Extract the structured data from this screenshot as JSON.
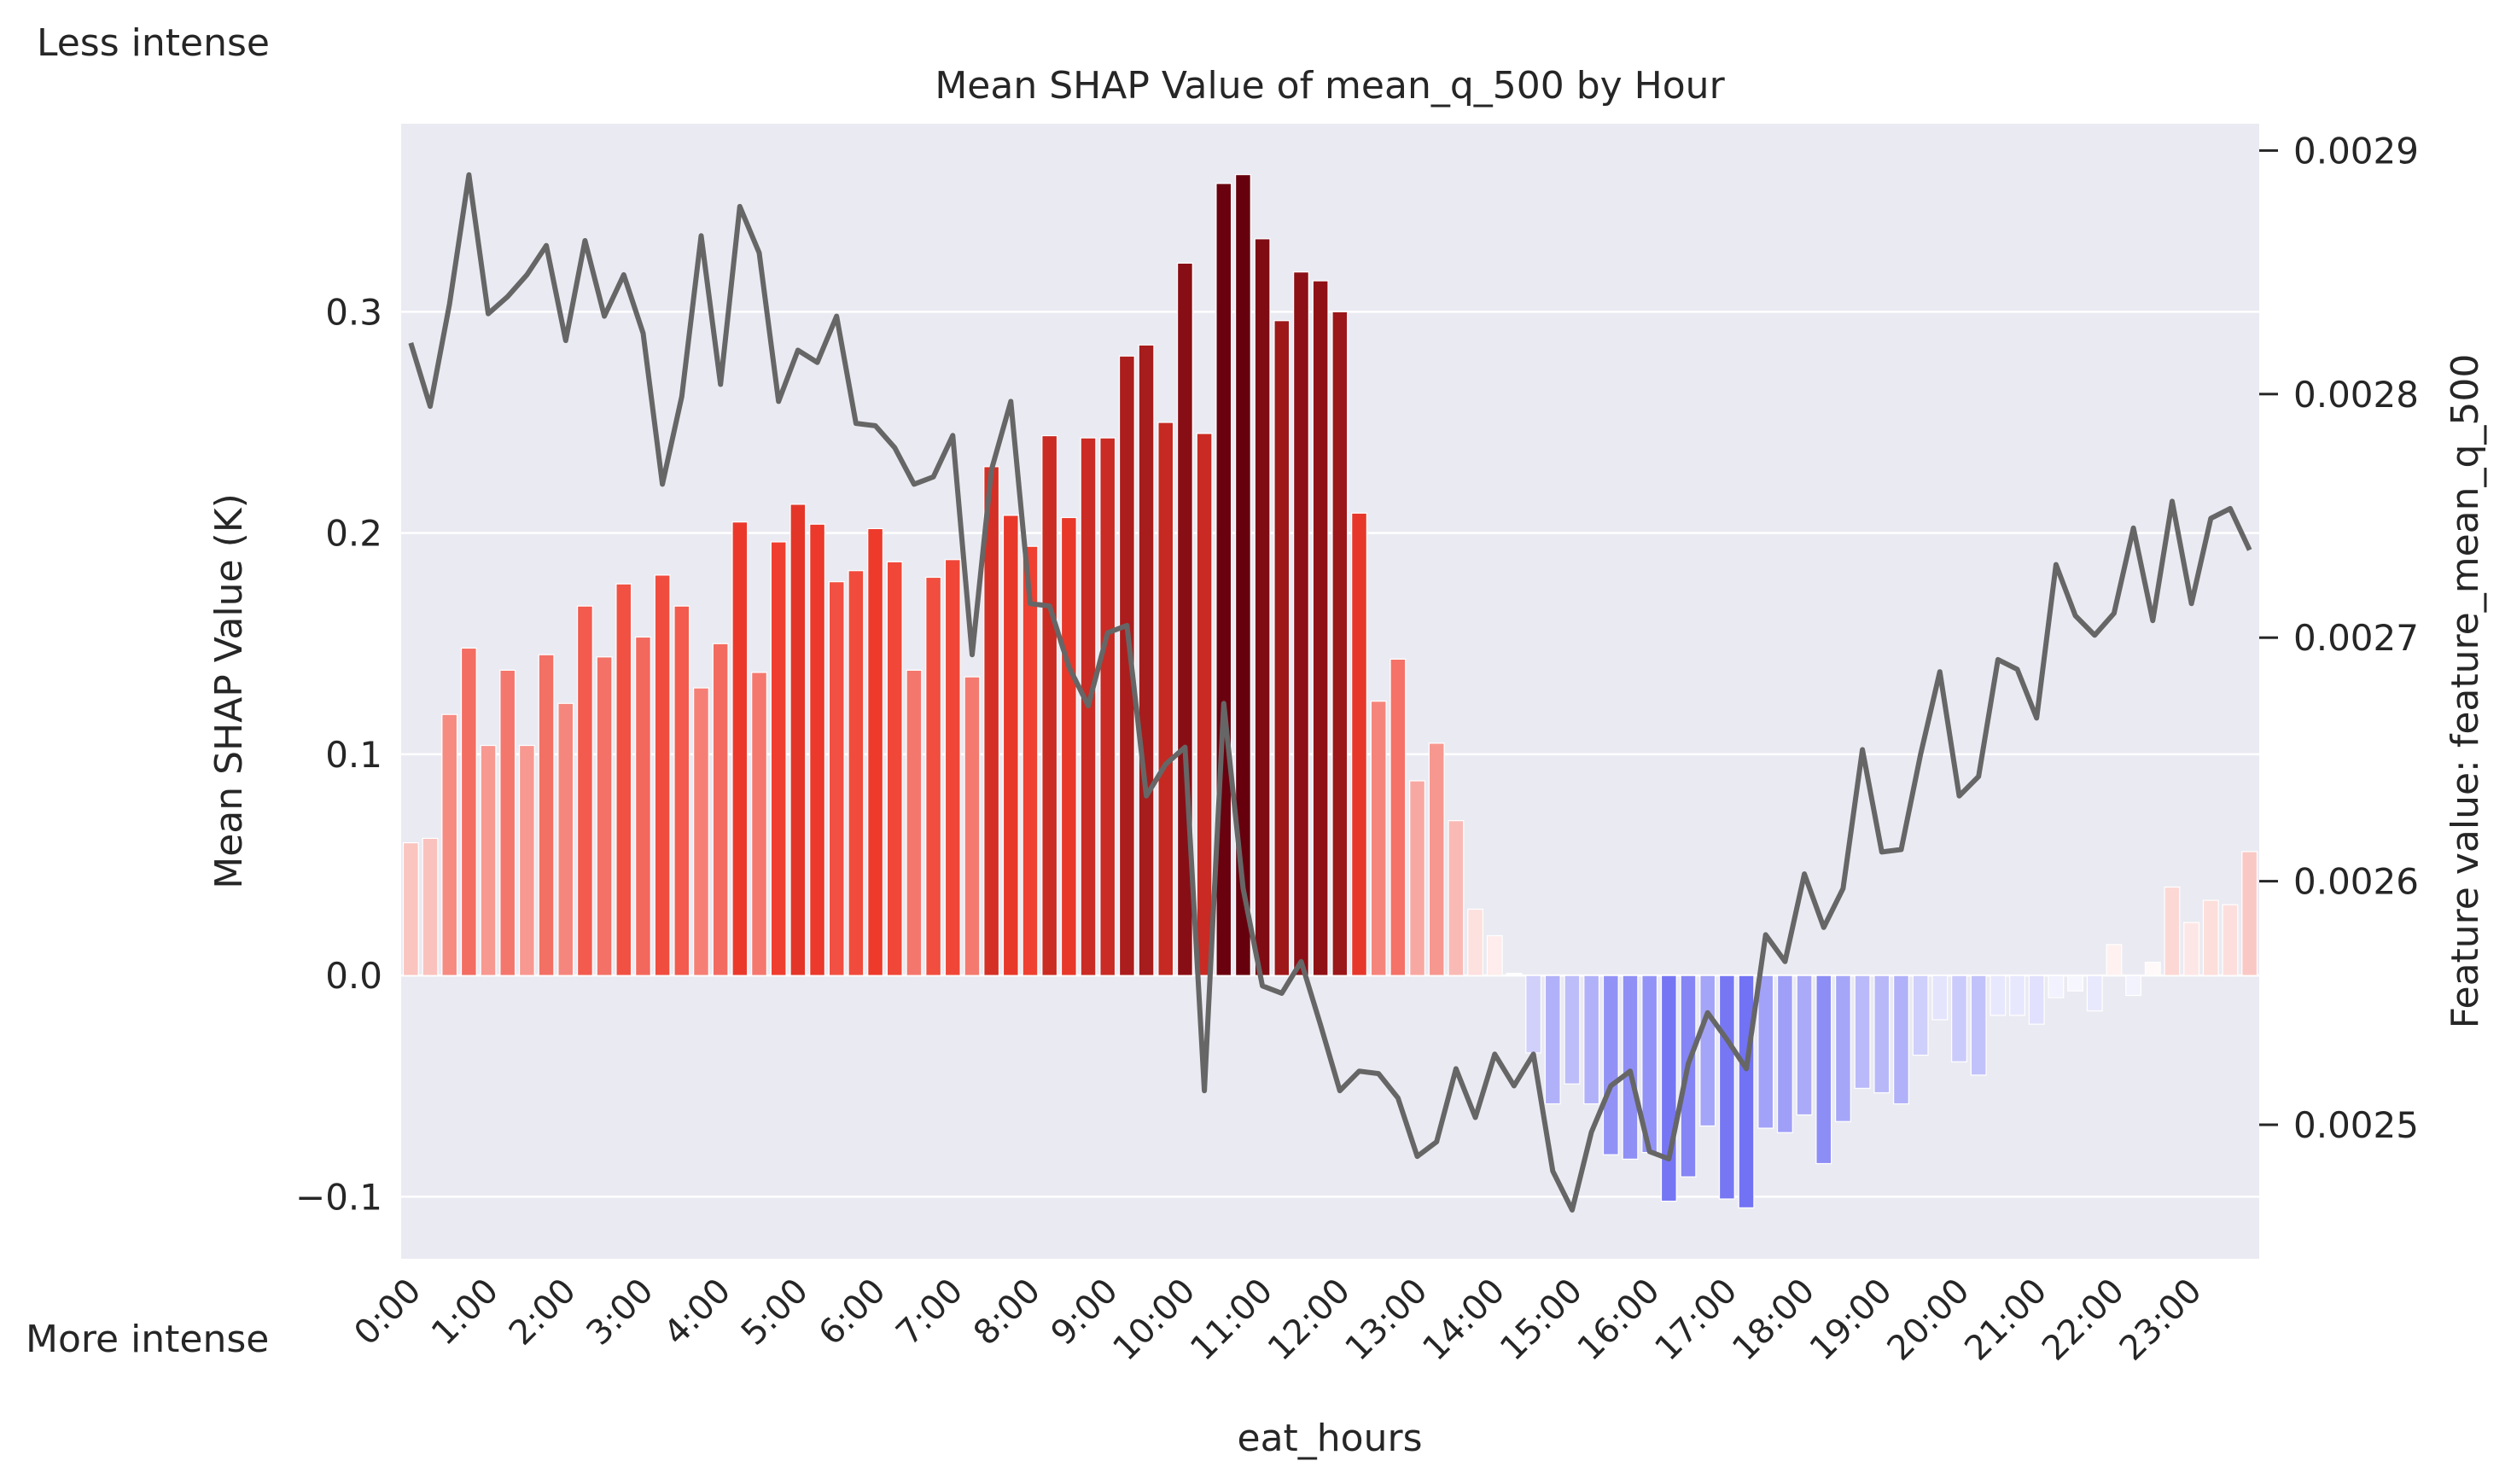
{
  "chart_data": {
    "type": "bar",
    "title": "Mean SHAP Value of mean_q_500 by Hour",
    "xlabel": "eat_hours",
    "ylabel": "Mean SHAP Value (K)",
    "y2label": "Feature value: feature_mean_q_500",
    "annotations": {
      "top": "Less intense",
      "bottom": "More intense"
    },
    "ylim": [
      -0.128,
      0.385
    ],
    "y2lim": [
      0.002445,
      0.002911
    ],
    "yticks": [
      -0.1,
      0.0,
      0.1,
      0.2,
      0.3
    ],
    "ytick_labels": [
      "−0.1",
      "0.0",
      "0.1",
      "0.2",
      "0.3"
    ],
    "y2ticks": [
      0.0025,
      0.0026,
      0.0027,
      0.0028,
      0.0029
    ],
    "y2tick_labels": [
      "0.0025",
      "0.0026",
      "0.0027",
      "0.0028",
      "0.0029"
    ],
    "xtick_labels": [
      "0:00",
      "1:00",
      "2:00",
      "3:00",
      "4:00",
      "5:00",
      "6:00",
      "7:00",
      "8:00",
      "9:00",
      "10:00",
      "11:00",
      "12:00",
      "13:00",
      "14:00",
      "15:00",
      "16:00",
      "17:00",
      "18:00",
      "19:00",
      "20:00",
      "21:00",
      "22:00",
      "23:00"
    ],
    "xtick_every": 4,
    "grid": true,
    "colors": {
      "positive_max": "#67000d",
      "positive_mid": "#ef3b2c",
      "zero": "#ffffff",
      "negative_max": "#4040f0",
      "line": "#666666",
      "plot_bg": "#eaeaf2"
    },
    "series": [
      {
        "kind": "bar",
        "values": [
          0.06,
          0.062,
          0.118,
          0.148,
          0.104,
          0.138,
          0.104,
          0.145,
          0.123,
          0.167,
          0.144,
          0.177,
          0.153,
          0.181,
          0.167,
          0.13,
          0.15,
          0.205,
          0.137,
          0.196,
          0.213,
          0.204,
          0.178,
          0.183,
          0.202,
          0.187,
          0.138,
          0.18,
          0.188,
          0.135,
          0.23,
          0.208,
          0.194,
          0.244,
          0.207,
          0.243,
          0.243,
          0.28,
          0.285,
          0.25,
          0.322,
          0.245,
          0.358,
          0.362,
          0.333,
          0.296,
          0.318,
          0.314,
          0.3,
          0.209,
          0.124,
          0.143,
          0.088,
          0.105,
          0.07,
          0.03,
          0.018,
          0.001,
          -0.035,
          -0.058,
          -0.049,
          -0.058,
          -0.081,
          -0.083,
          -0.08,
          -0.102,
          -0.091,
          -0.068,
          -0.101,
          -0.105,
          -0.069,
          -0.071,
          -0.063,
          -0.085,
          -0.066,
          -0.051,
          -0.053,
          -0.058,
          -0.036,
          -0.02,
          -0.039,
          -0.045,
          -0.018,
          -0.018,
          -0.022,
          -0.01,
          -0.007,
          -0.016,
          0.014,
          -0.009,
          0.006,
          0.04,
          0.024,
          0.034,
          0.032,
          0.056
        ]
      },
      {
        "kind": "line",
        "values": [
          0.002821,
          0.002795,
          0.002837,
          0.00289,
          0.002833,
          0.00284,
          0.002849,
          0.002861,
          0.002822,
          0.002863,
          0.002832,
          0.002849,
          0.002825,
          0.002763,
          0.002799,
          0.002865,
          0.002804,
          0.002877,
          0.002858,
          0.002797,
          0.002818,
          0.002813,
          0.002832,
          0.002788,
          0.002787,
          0.002778,
          0.002763,
          0.002766,
          0.002783,
          0.002693,
          0.002769,
          0.002797,
          0.002714,
          0.002713,
          0.002688,
          0.002672,
          0.002702,
          0.002705,
          0.002635,
          0.002648,
          0.002655,
          0.002514,
          0.002673,
          0.002597,
          0.002557,
          0.002554,
          0.002567,
          0.002541,
          0.002514,
          0.002522,
          0.002521,
          0.002511,
          0.002487,
          0.002493,
          0.002523,
          0.002503,
          0.002529,
          0.002516,
          0.002529,
          0.002481,
          0.002465,
          0.002497,
          0.002516,
          0.002522,
          0.002489,
          0.002486,
          0.002525,
          0.002546,
          0.002535,
          0.002523,
          0.002578,
          0.002567,
          0.002603,
          0.002581,
          0.002597,
          0.002654,
          0.002612,
          0.002613,
          0.002652,
          0.002686,
          0.002635,
          0.002643,
          0.002691,
          0.002687,
          0.002667,
          0.00273,
          0.002709,
          0.002701,
          0.00271,
          0.002745,
          0.002707,
          0.002756,
          0.002714,
          0.002749,
          0.002753,
          0.002736
        ]
      }
    ]
  }
}
